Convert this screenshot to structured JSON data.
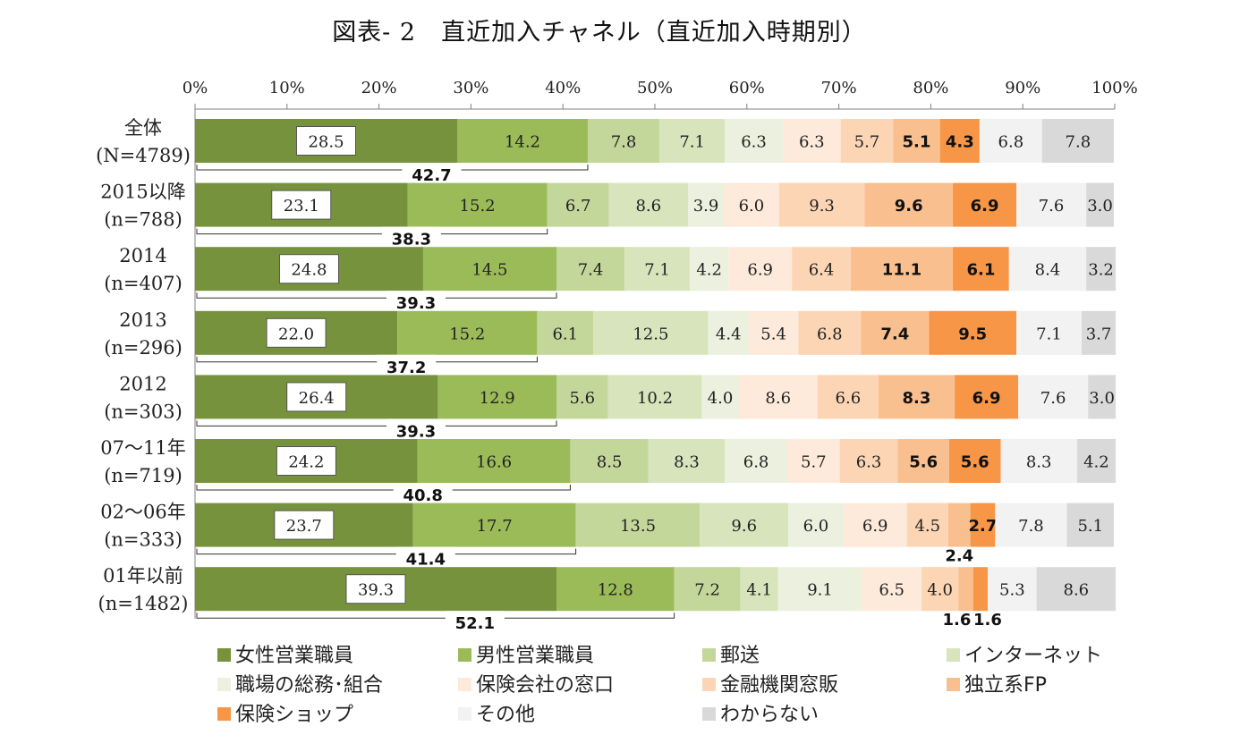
{
  "chart_data": {
    "type": "bar",
    "orientation": "horizontal",
    "stacked": "percent",
    "title": "図表- 2　直近加入チャネル（直近加入時期別）",
    "xlim": [
      0,
      100
    ],
    "x_ticks": [
      "0%",
      "10%",
      "20%",
      "30%",
      "40%",
      "50%",
      "60%",
      "70%",
      "80%",
      "90%",
      "100%"
    ],
    "categories": [
      [
        "全体",
        "(N=4789)"
      ],
      [
        "2015以降",
        "(n=788)"
      ],
      [
        "2014",
        "(n=407)"
      ],
      [
        "2013",
        "(n=296)"
      ],
      [
        "2012",
        "(n=303)"
      ],
      [
        "07～11年",
        "(n=719)"
      ],
      [
        "02～06年",
        "(n=333)"
      ],
      [
        "01年以前",
        "(n=1482)"
      ]
    ],
    "series": [
      {
        "name": "女性営業職員",
        "color": "#76923c",
        "values": [
          28.5,
          23.1,
          24.8,
          22.0,
          26.4,
          24.2,
          23.7,
          39.3
        ],
        "labels": [
          "28.5",
          "23.1",
          "24.8",
          "22.0",
          "26.4",
          "24.2",
          "23.7",
          "39.3"
        ]
      },
      {
        "name": "男性営業職員",
        "color": "#9bbb59",
        "values": [
          14.2,
          15.2,
          14.5,
          15.2,
          12.9,
          16.6,
          17.7,
          12.8
        ],
        "labels": [
          "14.2",
          "15.2",
          "14.5",
          "15.2",
          "12.9",
          "16.6",
          "17.7",
          "12.8"
        ]
      },
      {
        "name": "郵送",
        "color": "#c4d79b",
        "values": [
          7.8,
          6.7,
          7.4,
          6.1,
          5.6,
          8.5,
          13.5,
          7.2
        ],
        "labels": [
          "7.8",
          "6.7",
          "7.4",
          "6.1",
          "5.6",
          "8.5",
          "13.5",
          "7.2"
        ]
      },
      {
        "name": "インターネット",
        "color": "#d8e4bc",
        "values": [
          7.1,
          8.6,
          7.1,
          12.5,
          10.2,
          8.3,
          9.6,
          4.1
        ],
        "labels": [
          "7.1",
          "8.6",
          "7.1",
          "12.5",
          "10.2",
          "8.3",
          "9.6",
          "4.1"
        ]
      },
      {
        "name": "職場の総務･組合",
        "color": "#ebf1de",
        "values": [
          6.3,
          3.9,
          4.2,
          4.4,
          4.0,
          6.8,
          6.0,
          9.1
        ],
        "labels": [
          "6.3",
          "3.9",
          "4.2",
          "4.4",
          "4.0",
          "6.8",
          "6.0",
          "9.1"
        ]
      },
      {
        "name": "保険会社の窓口",
        "color": "#fdeada",
        "values": [
          6.3,
          6.0,
          6.9,
          5.4,
          8.6,
          5.7,
          6.9,
          6.5
        ],
        "labels": [
          "6.3",
          "6.0",
          "6.9",
          "5.4",
          "8.6",
          "5.7",
          "6.9",
          "6.5"
        ]
      },
      {
        "name": "金融機関窓販",
        "color": "#fcd5b4",
        "values": [
          5.7,
          9.3,
          6.4,
          6.8,
          6.6,
          6.3,
          4.5,
          4.0
        ],
        "labels": [
          "5.7",
          "9.3",
          "6.4",
          "6.8",
          "6.6",
          "6.3",
          "4.5",
          "4.0"
        ]
      },
      {
        "name": "独立系FP",
        "color": "#fabf8f",
        "values": [
          5.1,
          9.6,
          11.1,
          7.4,
          8.3,
          5.6,
          2.4,
          1.6
        ],
        "labels": [
          "5.1",
          "9.6",
          "11.1",
          "7.4",
          "8.3",
          "5.6",
          "2.4",
          "1.6"
        ]
      },
      {
        "name": "保険ショップ",
        "color": "#f79646",
        "values": [
          4.3,
          6.9,
          6.1,
          9.5,
          6.9,
          5.6,
          2.7,
          1.6
        ],
        "labels": [
          "4.3",
          "6.9",
          "6.1",
          "9.5",
          "6.9",
          "5.6",
          "2.7",
          "1.6"
        ]
      },
      {
        "name": "その他",
        "color": "#f2f2f2",
        "values": [
          6.8,
          7.6,
          8.4,
          7.1,
          7.6,
          8.3,
          7.8,
          5.3
        ],
        "labels": [
          "6.8",
          "7.6",
          "8.4",
          "7.1",
          "7.6",
          "8.3",
          "7.8",
          "5.3"
        ]
      },
      {
        "name": "わからない",
        "color": "#d9d9d9",
        "values": [
          7.8,
          3.0,
          3.2,
          3.7,
          3.0,
          4.2,
          5.1,
          8.6
        ],
        "labels": [
          "7.8",
          "3.0",
          "3.2",
          "3.7",
          "3.0",
          "4.2",
          "5.1",
          "8.6"
        ]
      }
    ],
    "sales_staff_totals": [
      42.7,
      38.3,
      39.3,
      37.2,
      39.3,
      40.8,
      41.4,
      52.1
    ],
    "sales_staff_total_labels": [
      "42.7",
      "38.3",
      "39.3",
      "37.2",
      "39.3",
      "40.8",
      "41.4",
      "52.1"
    ],
    "legend": {
      "position": "bottom",
      "columns": 4
    }
  }
}
